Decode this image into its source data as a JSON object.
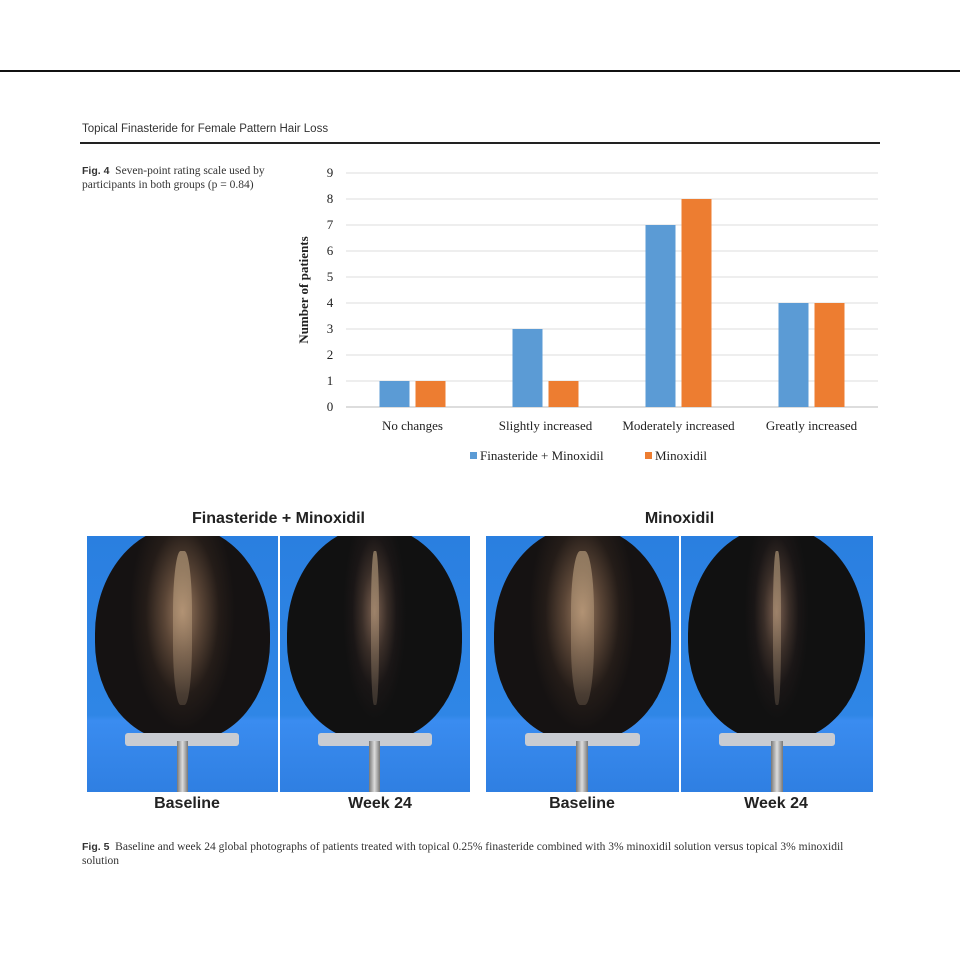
{
  "header": {
    "running_title": "Topical Finasteride for Female Pattern Hair Loss"
  },
  "fig4": {
    "label": "Fig. 4",
    "caption": "Seven-point rating scale used by participants in both groups (p = 0.84)"
  },
  "chart_data": {
    "type": "bar",
    "title": "",
    "xlabel": "",
    "ylabel": "Number of patients",
    "ylim": [
      0,
      9
    ],
    "yticks": [
      "0",
      "1",
      "2",
      "3",
      "4",
      "5",
      "6",
      "7",
      "8",
      "9"
    ],
    "grid": true,
    "legend_position": "bottom",
    "categories": [
      "No changes",
      "Slightly increased",
      "Moderately increased",
      "Greatly increased"
    ],
    "series": [
      {
        "name": "Finasteride + Minoxidil",
        "values": [
          1,
          3,
          7,
          4
        ],
        "color": "#5b9bd5"
      },
      {
        "name": "Minoxidil",
        "values": [
          1,
          1,
          8,
          4
        ],
        "color": "#ed7d31"
      }
    ]
  },
  "fig5": {
    "panel_titles": [
      "Finasteride + Minoxidil",
      "Minoxidil"
    ],
    "photo_labels": [
      "Baseline",
      "Week 24",
      "Baseline",
      "Week 24"
    ],
    "label": "Fig. 5",
    "caption": "Baseline and week 24 global photographs of patients treated with topical 0.25% finasteride combined with 3% minoxidil solution versus topical 3% minoxidil solution"
  }
}
